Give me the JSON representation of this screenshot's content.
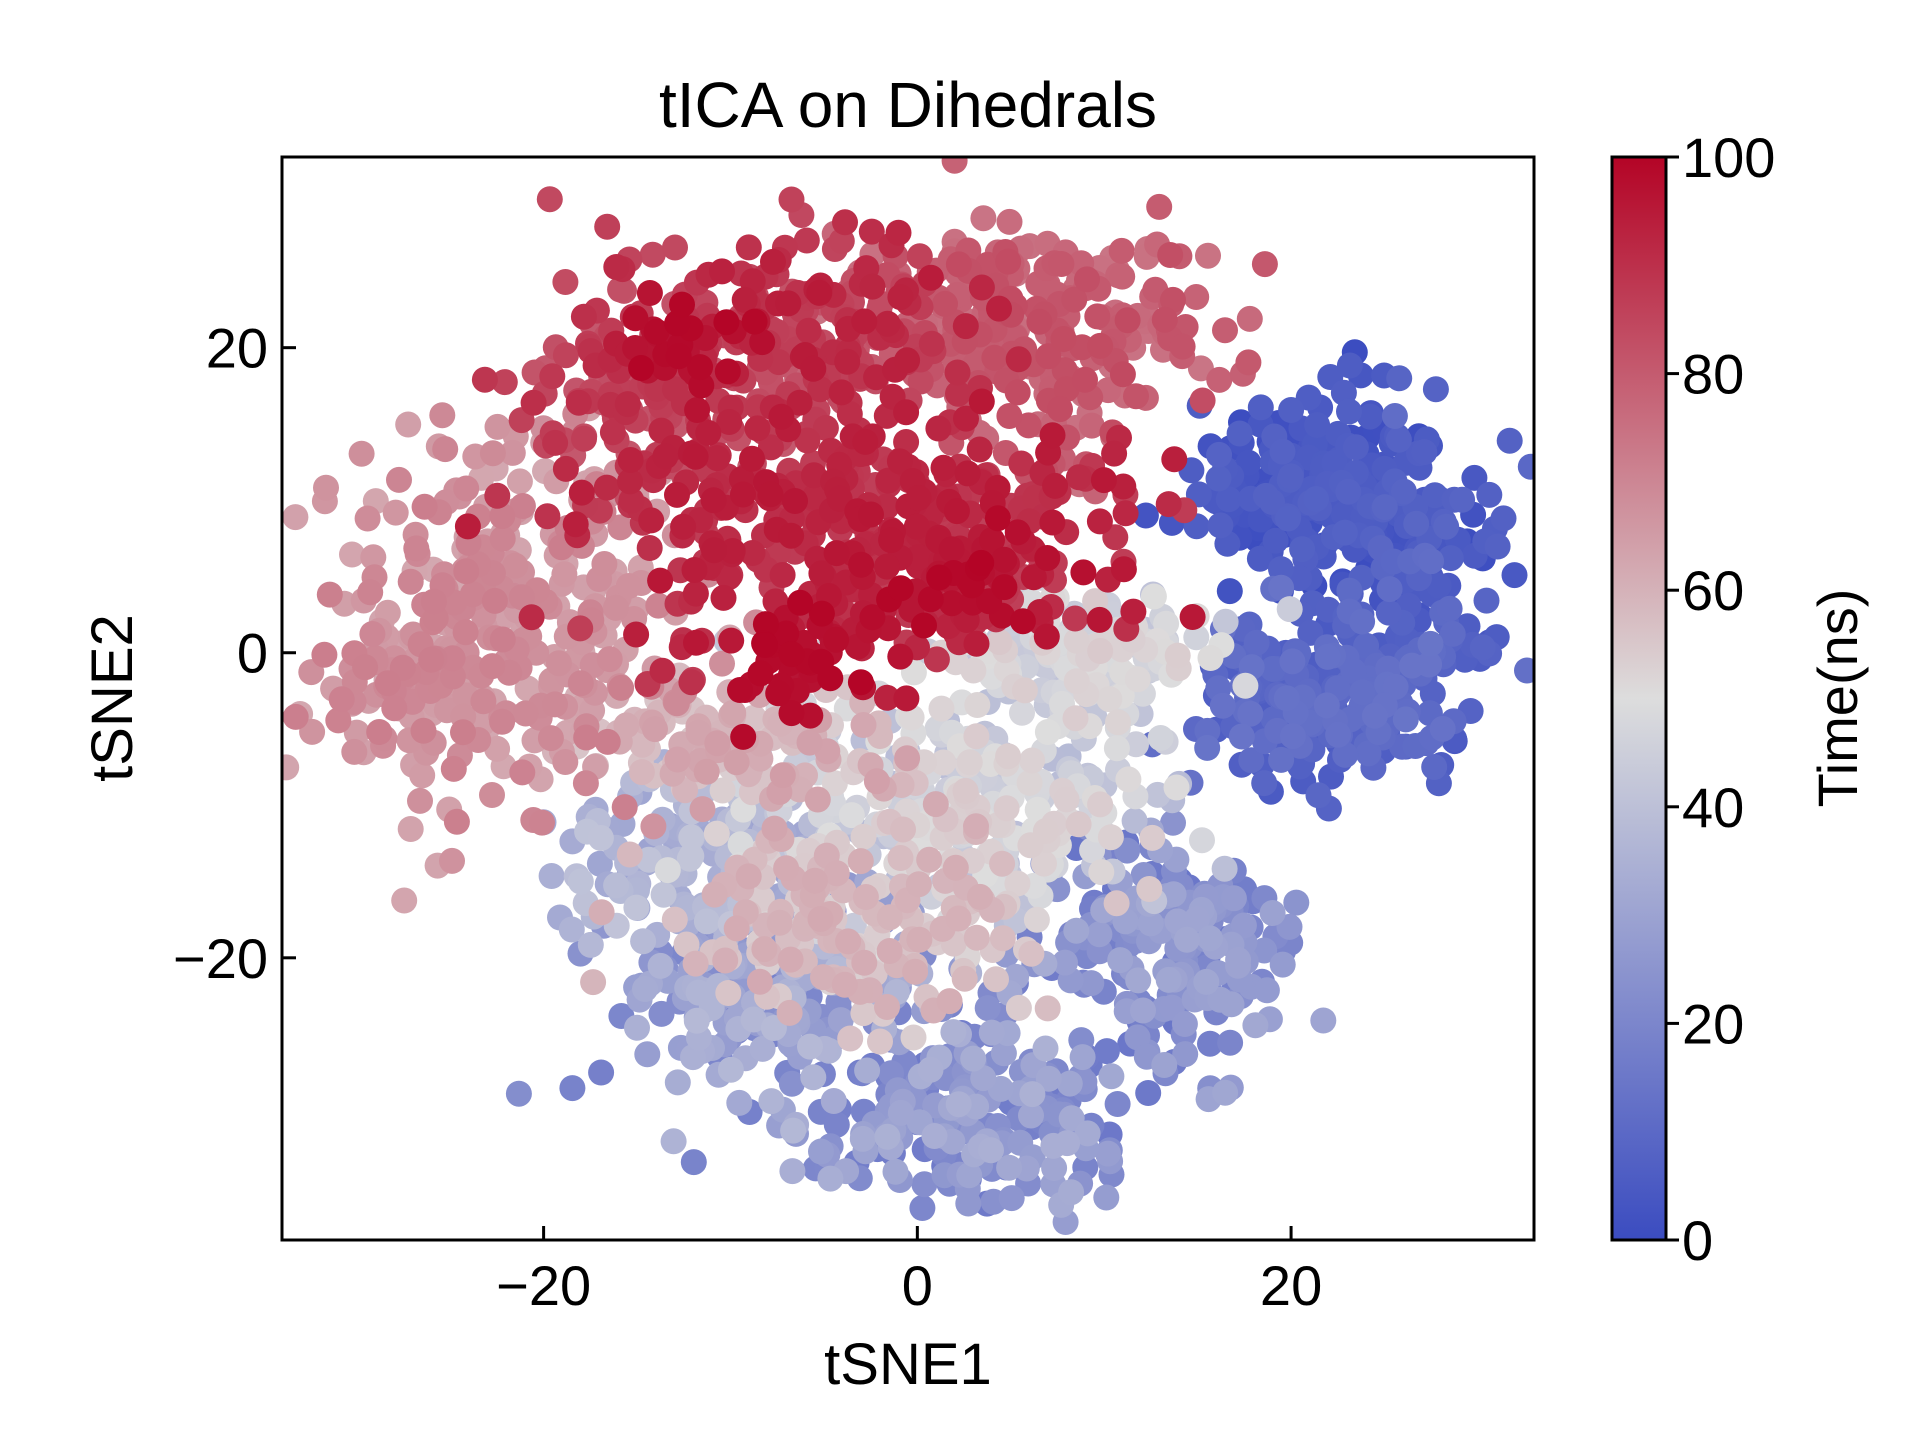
{
  "chart_data": {
    "type": "scatter",
    "title": "tICA on Dihedrals",
    "xlabel": "tSNE1",
    "ylabel": "tSNE2",
    "xlim": [
      -34,
      33
    ],
    "ylim": [
      -38.5,
      32.5
    ],
    "xticks": [
      -20,
      0,
      20
    ],
    "yticks": [
      -20,
      0,
      20
    ],
    "xtick_labels": [
      "−20",
      "0",
      "20"
    ],
    "ytick_labels": [
      "−20",
      "0",
      "20"
    ],
    "grid": false,
    "colormap": "coolwarm",
    "colorbar": {
      "label": "Time(ns)",
      "range": [
        0,
        100
      ],
      "ticks": [
        0,
        20,
        40,
        60,
        80,
        100
      ],
      "tick_labels": [
        "0",
        "20",
        "40",
        "60",
        "80",
        "100"
      ],
      "low_color": "#3b4cc0",
      "mid_color": "#dddddd",
      "high_color": "#b40426"
    },
    "color_variable": "Time(ns)",
    "clusters": [
      {
        "x": 22,
        "y": 11,
        "sx": 4.5,
        "sy": 4,
        "t": [
          0,
          8
        ],
        "n": 260
      },
      {
        "x": 22,
        "y": -3,
        "sx": 5,
        "sy": 3.5,
        "t": [
          5,
          14
        ],
        "n": 230
      },
      {
        "x": 27,
        "y": 5,
        "sx": 2.5,
        "sy": 6,
        "t": [
          2,
          12
        ],
        "n": 80
      },
      {
        "x": 13,
        "y": -19,
        "sx": 5,
        "sy": 5,
        "t": [
          14,
          32
        ],
        "n": 220
      },
      {
        "x": 3,
        "y": -30,
        "sx": 6,
        "sy": 4,
        "t": [
          15,
          35
        ],
        "n": 240
      },
      {
        "x": -8,
        "y": -22,
        "sx": 6,
        "sy": 5,
        "t": [
          18,
          38
        ],
        "n": 220
      },
      {
        "x": -12,
        "y": -13,
        "sx": 5,
        "sy": 4,
        "t": [
          30,
          42
        ],
        "n": 130
      },
      {
        "x": 2,
        "y": -10,
        "sx": 8,
        "sy": 5,
        "t": [
          38,
          55
        ],
        "n": 300
      },
      {
        "x": 9,
        "y": 0,
        "sx": 5,
        "sy": 3,
        "t": [
          40,
          55
        ],
        "n": 170
      },
      {
        "x": -4,
        "y": -18,
        "sx": 7,
        "sy": 4,
        "t": [
          52,
          62
        ],
        "n": 180
      },
      {
        "x": -10,
        "y": -6,
        "sx": 6,
        "sy": 3,
        "t": [
          55,
          65
        ],
        "n": 120
      },
      {
        "x": -22,
        "y": 2,
        "sx": 6,
        "sy": 8,
        "t": [
          62,
          72
        ],
        "n": 320
      },
      {
        "x": -27,
        "y": -2,
        "sx": 2.5,
        "sy": 3,
        "t": [
          64,
          72
        ],
        "n": 60
      },
      {
        "x": 6,
        "y": 21,
        "sx": 6,
        "sy": 5,
        "t": [
          74,
          84
        ],
        "n": 280
      },
      {
        "x": -14,
        "y": 17,
        "sx": 5,
        "sy": 5,
        "t": [
          80,
          92
        ],
        "n": 170
      },
      {
        "x": -3,
        "y": 8,
        "sx": 9,
        "sy": 5,
        "t": [
          86,
          96
        ],
        "n": 380
      },
      {
        "x": -5,
        "y": 21,
        "sx": 5,
        "sy": 5,
        "t": [
          82,
          95
        ],
        "n": 170
      },
      {
        "x": -6,
        "y": 0,
        "sx": 2.5,
        "sy": 2.5,
        "t": [
          96,
          100
        ],
        "n": 50
      },
      {
        "x": -12,
        "y": 20,
        "sx": 2,
        "sy": 2,
        "t": [
          96,
          100
        ],
        "n": 30
      },
      {
        "x": 3,
        "y": 5,
        "sx": 3,
        "sy": 3,
        "t": [
          93,
          100
        ],
        "n": 50
      }
    ]
  }
}
